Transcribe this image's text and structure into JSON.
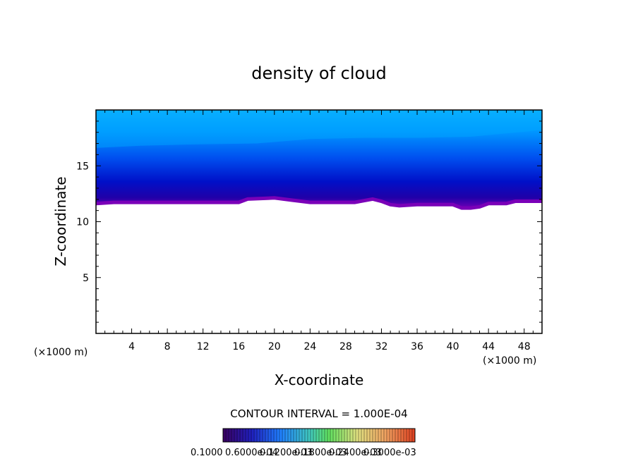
{
  "chart_data": {
    "type": "heatmap",
    "title": "density of cloud",
    "xlabel": "X-coordinate",
    "ylabel": "Z-coordinate",
    "x_unit": "(×1000 m)",
    "y_unit": "(×1000 m)",
    "xlim": [
      0,
      50
    ],
    "ylim": [
      0,
      20
    ],
    "x_ticks": [
      4,
      8,
      12,
      16,
      20,
      24,
      28,
      32,
      36,
      40,
      44,
      48
    ],
    "y_ticks": [
      5,
      10,
      15
    ],
    "cloud_base": {
      "x": [
        0,
        2,
        6,
        10,
        16,
        17,
        20,
        22,
        24,
        29,
        31,
        32,
        33,
        34,
        36,
        40,
        41,
        42,
        43,
        44,
        46,
        47,
        50
      ],
      "z": [
        11.5,
        11.6,
        11.6,
        11.6,
        11.6,
        11.9,
        12.0,
        11.8,
        11.6,
        11.6,
        11.9,
        11.7,
        11.4,
        11.3,
        11.4,
        11.4,
        11.1,
        11.1,
        11.2,
        11.5,
        11.5,
        11.7,
        11.7
      ]
    },
    "cloud_top_z": 20,
    "contour_interval_label": "CONTOUR INTERVAL = 1.000E-04",
    "colorbar_labels": [
      "0.1000",
      "0.6000e-04",
      "0.1200e-03",
      "0.1800e-03",
      "0.2400e-03",
      "0.3000e-03"
    ],
    "palette": {
      "cloud_base": "#7a00b8",
      "deep_blue": "#0000a0",
      "mid_blue": "#1060ff",
      "upper_blue": "#00a0ff",
      "top_blue": "#10b8ff"
    }
  }
}
